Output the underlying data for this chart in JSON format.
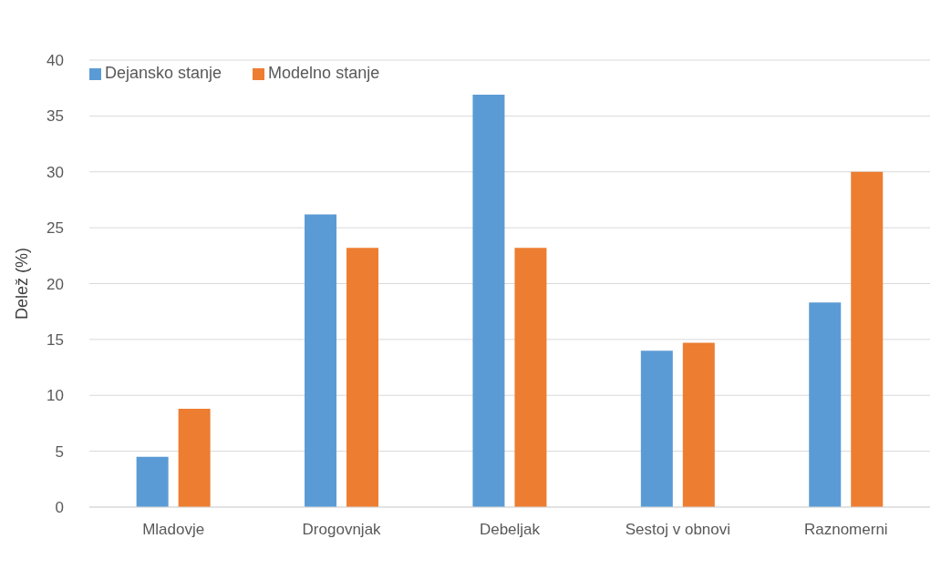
{
  "chart_data": {
    "type": "bar",
    "ylabel": "Delež (%)",
    "categories": [
      "Mladovje",
      "Drogovnjak",
      "Debeljak",
      "Sestoj v obnovi",
      "Raznomerni"
    ],
    "series": [
      {
        "name": "Dejansko stanje",
        "color": "#5b9bd5",
        "values": [
          4.5,
          26.2,
          36.9,
          14.0,
          18.3
        ]
      },
      {
        "name": "Modelno stanje",
        "color": "#ed7d31",
        "values": [
          8.8,
          23.2,
          23.2,
          14.7,
          30.0
        ]
      }
    ],
    "ylim": [
      0,
      40
    ],
    "yticks": [
      0,
      5,
      10,
      15,
      20,
      25,
      30,
      35,
      40
    ],
    "grid": "y",
    "legend": "top left"
  }
}
